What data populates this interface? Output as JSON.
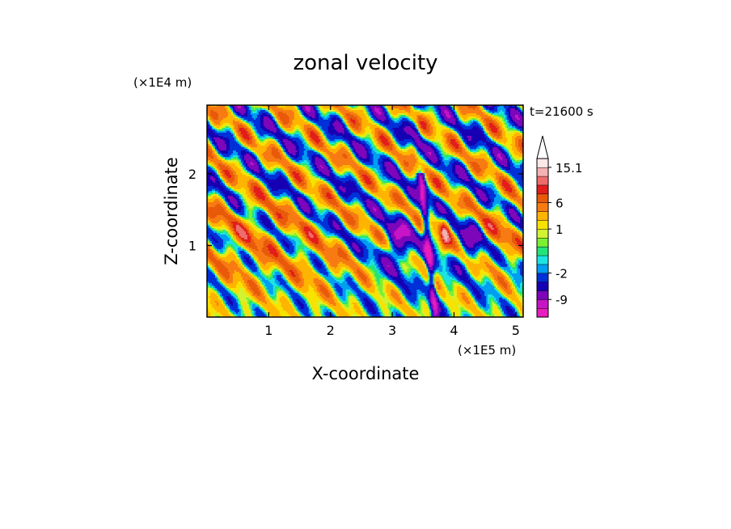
{
  "chart_data": {
    "type": "heatmap",
    "title": "zonal velocity",
    "xlabel": "X-coordinate",
    "ylabel": "Z-coordinate",
    "x_unit": "(×1E5 m)",
    "y_unit": "(×1E4 m)",
    "time_label": "t=21600 s",
    "xlim": [
      0,
      5.12
    ],
    "ylim": [
      0,
      2.96
    ],
    "x_ticks": [
      {
        "value": 1,
        "label": "1"
      },
      {
        "value": 2,
        "label": "2"
      },
      {
        "value": 3,
        "label": "3"
      },
      {
        "value": 4,
        "label": "4"
      },
      {
        "value": 5,
        "label": "5"
      }
    ],
    "y_ticks": [
      {
        "value": 1,
        "label": "1"
      },
      {
        "value": 2,
        "label": "2"
      }
    ],
    "colorbar": {
      "levels": [
        -15,
        -12,
        -9,
        -6,
        -4,
        -2,
        -1,
        -0.5,
        0,
        0.5,
        1,
        2,
        4,
        6,
        8,
        10,
        12,
        15.1
      ],
      "colors": [
        "#e71dbd",
        "#c614c6",
        "#7d06ba",
        "#1700b4",
        "#0030d8",
        "#009ef0",
        "#1de3e3",
        "#22e47a",
        "#7bf032",
        "#d2f232",
        "#f7e200",
        "#ffb400",
        "#f77b12",
        "#e85a0a",
        "#e31c1c",
        "#ee6c6c",
        "#f5b2b2",
        "#fde8e8"
      ],
      "labels": [
        {
          "value": 15.1,
          "label": "15.1"
        },
        {
          "value": 6,
          "label": "6"
        },
        {
          "value": 1,
          "label": "1"
        },
        {
          "value": -2,
          "label": "-2"
        },
        {
          "value": -9,
          "label": "-9"
        }
      ],
      "extend": "max"
    },
    "field_description": "Turbulent zonal velocity field; broad positive (yellow/orange) region at x<2, low z; narrow negative (blue) streaks near x≈3.5–4.5 and tilted bands in upper half"
  }
}
